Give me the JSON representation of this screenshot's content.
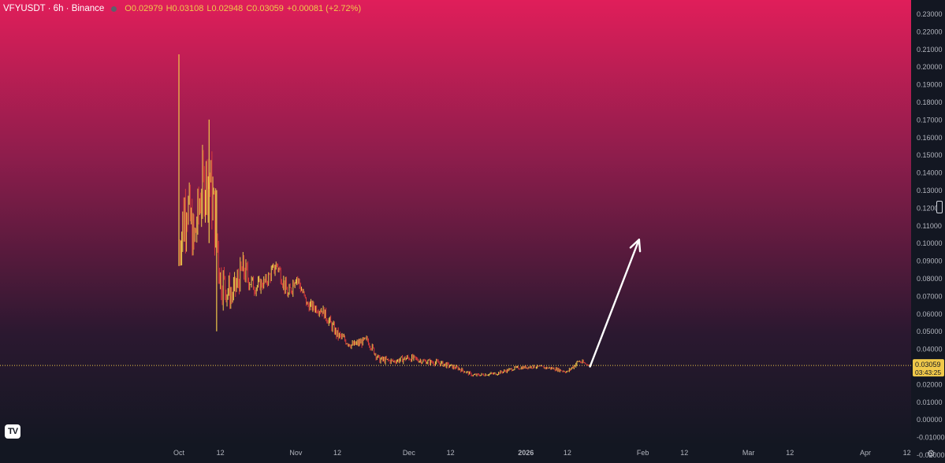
{
  "header": {
    "symbol_title": "VFYUSDT · 6h · Binance",
    "status_color": "#5d606b",
    "ohlc": [
      {
        "key": "O",
        "value": "0.02979"
      },
      {
        "key": "H",
        "value": "0.03108"
      },
      {
        "key": "L",
        "value": "0.02948"
      },
      {
        "key": "C",
        "value": "0.03059"
      }
    ],
    "change": "+0.00081 (+2.72%)"
  },
  "price_label": {
    "value": "0.03059",
    "countdown": "03:43:25",
    "color": "#f0c94a"
  },
  "icons": {
    "logo": "tradingview-logo-icon",
    "logo_text": "TV",
    "settings": "gear-icon",
    "settings_glyph": "⚙"
  },
  "chart_data": {
    "type": "candlestick",
    "symbol": "VFYUSDT",
    "interval": "6h",
    "exchange": "Binance",
    "ylim": [
      -0.02,
      0.235
    ],
    "y_ticks": [
      "0.23000",
      "0.22000",
      "0.21000",
      "0.20000",
      "0.19000",
      "0.18000",
      "0.17000",
      "0.16000",
      "0.15000",
      "0.14000",
      "0.13000",
      "0.12000",
      "0.11000",
      "0.10000",
      "0.09000",
      "0.08000",
      "0.07000",
      "0.06000",
      "0.05000",
      "0.04000",
      "0.03000",
      "0.02000",
      "0.01000",
      "0.00000",
      "-0.01000",
      "-0.02000"
    ],
    "x_labels": [
      {
        "label": "Oct",
        "date": "2025-10-01"
      },
      {
        "label": "12",
        "date": "2025-10-12"
      },
      {
        "label": "Nov",
        "date": "2025-11-01"
      },
      {
        "label": "12",
        "date": "2025-11-12"
      },
      {
        "label": "Dec",
        "date": "2025-12-01"
      },
      {
        "label": "12",
        "date": "2025-12-12"
      },
      {
        "label": "2026",
        "date": "2026-01-01"
      },
      {
        "label": "12",
        "date": "2026-01-12"
      },
      {
        "label": "Feb",
        "date": "2026-02-01"
      },
      {
        "label": "12",
        "date": "2026-02-12"
      },
      {
        "label": "Mar",
        "date": "2026-03-01"
      },
      {
        "label": "12",
        "date": "2026-03-12"
      },
      {
        "label": "Apr",
        "date": "2026-04-01"
      },
      {
        "label": "12",
        "date": "2026-04-12"
      }
    ],
    "last_price": 0.03059,
    "price_keypoints": [
      {
        "date": "2025-10-01",
        "close": 0.095,
        "high": 0.207,
        "low": 0.087
      },
      {
        "date": "2025-10-03",
        "close": 0.125,
        "high": 0.16,
        "low": 0.088
      },
      {
        "date": "2025-10-05",
        "close": 0.1,
        "high": 0.145,
        "low": 0.09
      },
      {
        "date": "2025-10-07",
        "close": 0.13,
        "high": 0.165,
        "low": 0.095
      },
      {
        "date": "2025-10-09",
        "close": 0.14,
        "high": 0.17,
        "low": 0.1
      },
      {
        "date": "2025-10-11",
        "close": 0.105,
        "high": 0.13,
        "low": 0.05
      },
      {
        "date": "2025-10-12",
        "close": 0.08,
        "high": 0.1,
        "low": 0.05
      },
      {
        "date": "2025-10-15",
        "close": 0.07,
        "high": 0.09,
        "low": 0.06
      },
      {
        "date": "2025-10-18",
        "close": 0.085,
        "high": 0.1,
        "low": 0.065
      },
      {
        "date": "2025-10-21",
        "close": 0.075,
        "high": 0.085,
        "low": 0.068
      },
      {
        "date": "2025-10-24",
        "close": 0.078,
        "high": 0.085,
        "low": 0.07
      },
      {
        "date": "2025-10-27",
        "close": 0.088,
        "high": 0.093,
        "low": 0.075
      },
      {
        "date": "2025-10-30",
        "close": 0.07,
        "high": 0.08,
        "low": 0.062
      },
      {
        "date": "2025-11-01",
        "close": 0.082,
        "high": 0.085,
        "low": 0.065
      },
      {
        "date": "2025-11-04",
        "close": 0.065,
        "high": 0.07,
        "low": 0.058
      },
      {
        "date": "2025-11-08",
        "close": 0.062,
        "high": 0.068,
        "low": 0.055
      },
      {
        "date": "2025-11-12",
        "close": 0.048,
        "high": 0.055,
        "low": 0.042
      },
      {
        "date": "2025-11-16",
        "close": 0.042,
        "high": 0.048,
        "low": 0.038
      },
      {
        "date": "2025-11-20",
        "close": 0.045,
        "high": 0.05,
        "low": 0.04
      },
      {
        "date": "2025-11-23",
        "close": 0.034,
        "high": 0.04,
        "low": 0.031
      },
      {
        "date": "2025-11-27",
        "close": 0.033,
        "high": 0.036,
        "low": 0.03
      },
      {
        "date": "2025-12-01",
        "close": 0.035,
        "high": 0.04,
        "low": 0.031
      },
      {
        "date": "2025-12-05",
        "close": 0.033,
        "high": 0.036,
        "low": 0.03
      },
      {
        "date": "2025-12-09",
        "close": 0.032,
        "high": 0.037,
        "low": 0.03
      },
      {
        "date": "2025-12-14",
        "close": 0.029,
        "high": 0.032,
        "low": 0.027
      },
      {
        "date": "2025-12-18",
        "close": 0.025,
        "high": 0.027,
        "low": 0.023
      },
      {
        "date": "2025-12-24",
        "close": 0.026,
        "high": 0.028,
        "low": 0.024
      },
      {
        "date": "2025-12-29",
        "close": 0.029,
        "high": 0.031,
        "low": 0.027
      },
      {
        "date": "2026-01-03",
        "close": 0.03,
        "high": 0.032,
        "low": 0.028
      },
      {
        "date": "2026-01-08",
        "close": 0.029,
        "high": 0.031,
        "low": 0.027
      },
      {
        "date": "2026-01-12",
        "close": 0.027,
        "high": 0.03,
        "low": 0.026
      },
      {
        "date": "2026-01-15",
        "close": 0.033,
        "high": 0.036,
        "low": 0.029
      },
      {
        "date": "2026-01-18",
        "close": 0.03059,
        "high": 0.03108,
        "low": 0.02948
      }
    ],
    "annotation": {
      "type": "arrow",
      "color": "#ffffff",
      "from": {
        "date": "2026-01-18",
        "price": 0.03
      },
      "to": {
        "date": "2026-01-31",
        "price": 0.102
      }
    },
    "colors": {
      "background_top": "#e01e5a",
      "background_bottom": "#131722",
      "candle_up": "#f0c94a",
      "candle_down": "#d93a3a",
      "axis_text": "#b2b5be",
      "price_line": "#f0c94a"
    }
  }
}
